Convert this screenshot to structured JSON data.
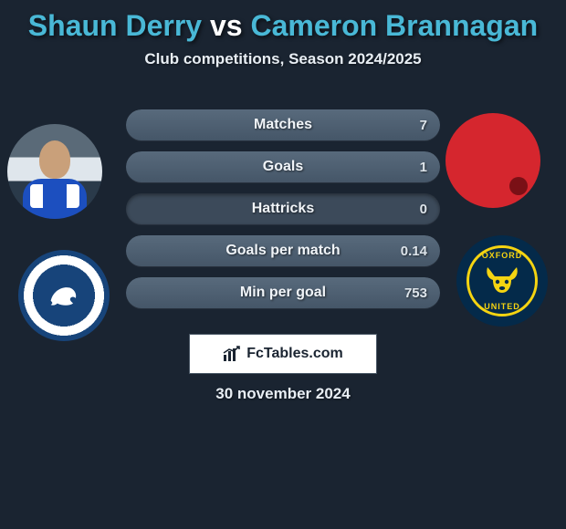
{
  "header": {
    "player1": "Shaun Derry",
    "vs": "vs",
    "player2": "Cameron Brannagan",
    "player1_color": "#49b8d6",
    "player2_color": "#49b8d6",
    "subtitle": "Club competitions, Season 2024/2025"
  },
  "stats": {
    "rows": [
      {
        "label": "Matches",
        "left": "",
        "right": "7",
        "right_fill_pct": 100
      },
      {
        "label": "Goals",
        "left": "",
        "right": "1",
        "right_fill_pct": 100
      },
      {
        "label": "Hattricks",
        "left": "",
        "right": "0",
        "right_fill_pct": 0
      },
      {
        "label": "Goals per match",
        "left": "",
        "right": "0.14",
        "right_fill_pct": 100
      },
      {
        "label": "Min per goal",
        "left": "",
        "right": "753",
        "right_fill_pct": 100
      }
    ],
    "row_bg": "#3c4a5a",
    "fill_bg": "#526374",
    "label_color": "#f0f4f8",
    "val_color": "#dde4ea"
  },
  "brand": {
    "text_left": "Fc",
    "text_right": "Tables.com"
  },
  "footer": {
    "date": "30 november 2024"
  },
  "crests": {
    "left_primary": "#17447a",
    "left_secondary": "#ffffff",
    "right_bg": "#042a4a",
    "right_accent": "#f5d411",
    "right_text_top": "OXFORD",
    "right_text_bottom": "UNITED"
  },
  "colors": {
    "page_bg": "#1a2431",
    "text": "#e8eef4"
  }
}
